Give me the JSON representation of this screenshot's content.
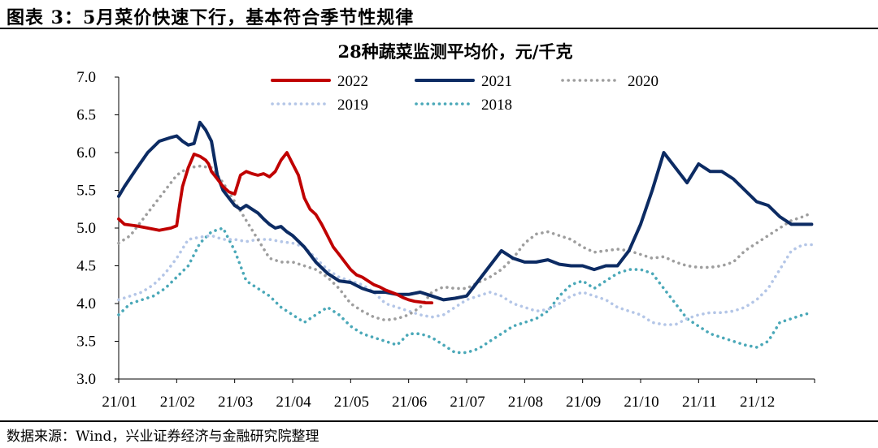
{
  "figure": {
    "title": "图表 3：5月菜价快速下行，基本符合季节性规律",
    "source": "数据来源：Wind，兴业证券经济与金融研究院整理"
  },
  "chart_data": {
    "type": "line",
    "title": "28种蔬菜监测平均价，元/千克",
    "xlabel": "",
    "ylabel": "",
    "ylim": [
      3.0,
      7.0
    ],
    "yticks": [
      "3.0",
      "3.5",
      "4.0",
      "4.5",
      "5.0",
      "5.5",
      "6.0",
      "6.5",
      "7.0"
    ],
    "xticks": [
      "21/01",
      "21/02",
      "21/03",
      "21/04",
      "21/05",
      "21/06",
      "21/07",
      "21/08",
      "21/09",
      "21/10",
      "21/11",
      "21/12"
    ],
    "grid": false,
    "legend_position": "top",
    "series": [
      {
        "name": "2022",
        "color": "#c00000",
        "style": "solid",
        "x": [
          0.0,
          0.1,
          0.3,
          0.5,
          0.7,
          0.9,
          1.0,
          1.05,
          1.1,
          1.2,
          1.3,
          1.4,
          1.5,
          1.55,
          1.6,
          1.7,
          1.8,
          1.9,
          2.0,
          2.1,
          2.2,
          2.3,
          2.4,
          2.5,
          2.6,
          2.7,
          2.8,
          2.9,
          3.0,
          3.1,
          3.2,
          3.3,
          3.4,
          3.5,
          3.6,
          3.7,
          3.8,
          3.9,
          4.0,
          4.1,
          4.2,
          4.3,
          4.4,
          4.5,
          4.6,
          4.7,
          4.8,
          4.9,
          5.0,
          5.1,
          5.2,
          5.3,
          5.4
        ],
        "values": [
          5.12,
          5.05,
          5.03,
          5.0,
          4.97,
          5.0,
          5.03,
          5.3,
          5.55,
          5.8,
          5.98,
          5.95,
          5.9,
          5.85,
          5.75,
          5.65,
          5.55,
          5.48,
          5.45,
          5.7,
          5.75,
          5.72,
          5.7,
          5.72,
          5.68,
          5.75,
          5.9,
          6.0,
          5.85,
          5.7,
          5.4,
          5.25,
          5.18,
          5.05,
          4.9,
          4.75,
          4.65,
          4.55,
          4.45,
          4.38,
          4.35,
          4.3,
          4.25,
          4.22,
          4.18,
          4.15,
          4.12,
          4.08,
          4.05,
          4.03,
          4.02,
          4.01,
          4.01
        ]
      },
      {
        "name": "2021",
        "color": "#0c2b63",
        "style": "solid",
        "x": [
          0.0,
          0.1,
          0.3,
          0.5,
          0.7,
          0.9,
          1.0,
          1.1,
          1.2,
          1.3,
          1.4,
          1.5,
          1.6,
          1.7,
          1.8,
          1.9,
          2.0,
          2.1,
          2.2,
          2.3,
          2.4,
          2.5,
          2.6,
          2.7,
          2.8,
          2.9,
          3.0,
          3.2,
          3.4,
          3.6,
          3.8,
          4.0,
          4.2,
          4.4,
          4.6,
          4.8,
          5.0,
          5.2,
          5.4,
          5.6,
          5.8,
          6.0,
          6.2,
          6.4,
          6.6,
          6.8,
          7.0,
          7.2,
          7.4,
          7.6,
          7.8,
          8.0,
          8.2,
          8.4,
          8.6,
          8.8,
          9.0,
          9.2,
          9.4,
          9.6,
          9.8,
          10.0,
          10.2,
          10.4,
          10.6,
          10.8,
          11.0,
          11.2,
          11.4,
          11.6,
          11.8,
          11.95
        ],
        "values": [
          5.42,
          5.55,
          5.78,
          6.0,
          6.15,
          6.2,
          6.22,
          6.15,
          6.1,
          6.12,
          6.4,
          6.3,
          6.15,
          5.7,
          5.5,
          5.4,
          5.3,
          5.25,
          5.3,
          5.25,
          5.2,
          5.12,
          5.05,
          5.0,
          5.02,
          4.95,
          4.9,
          4.75,
          4.55,
          4.4,
          4.3,
          4.28,
          4.2,
          4.15,
          4.15,
          4.12,
          4.12,
          4.15,
          4.1,
          4.05,
          4.07,
          4.1,
          4.3,
          4.5,
          4.7,
          4.6,
          4.55,
          4.55,
          4.58,
          4.52,
          4.5,
          4.5,
          4.45,
          4.5,
          4.5,
          4.7,
          5.05,
          5.5,
          6.0,
          5.8,
          5.6,
          5.85,
          5.75,
          5.75,
          5.65,
          5.5,
          5.35,
          5.3,
          5.15,
          5.05,
          5.05,
          5.05
        ]
      },
      {
        "name": "2020",
        "color": "#9e9e9e",
        "style": "dotted",
        "x": [
          0.0,
          0.2,
          0.4,
          0.6,
          0.8,
          1.0,
          1.2,
          1.4,
          1.6,
          1.8,
          2.0,
          2.2,
          2.4,
          2.6,
          2.8,
          3.0,
          3.2,
          3.4,
          3.6,
          3.8,
          4.0,
          4.2,
          4.4,
          4.6,
          4.8,
          5.0,
          5.2,
          5.4,
          5.6,
          5.8,
          6.0,
          6.2,
          6.4,
          6.6,
          6.8,
          7.0,
          7.2,
          7.4,
          7.6,
          7.8,
          8.0,
          8.2,
          8.4,
          8.6,
          8.8,
          9.0,
          9.2,
          9.4,
          9.6,
          9.8,
          10.0,
          10.2,
          10.4,
          10.6,
          10.8,
          11.0,
          11.2,
          11.4,
          11.6,
          11.8,
          11.95
        ],
        "values": [
          4.8,
          4.9,
          5.1,
          5.3,
          5.5,
          5.7,
          5.8,
          5.82,
          5.8,
          5.6,
          5.35,
          5.1,
          4.85,
          4.6,
          4.55,
          4.55,
          4.5,
          4.45,
          4.35,
          4.2,
          4.0,
          3.9,
          3.82,
          3.78,
          3.8,
          3.85,
          3.95,
          4.15,
          4.22,
          4.2,
          4.2,
          4.28,
          4.35,
          4.45,
          4.6,
          4.8,
          4.92,
          4.95,
          4.9,
          4.85,
          4.75,
          4.68,
          4.7,
          4.72,
          4.7,
          4.65,
          4.6,
          4.62,
          4.55,
          4.5,
          4.48,
          4.48,
          4.5,
          4.55,
          4.7,
          4.8,
          4.9,
          5.0,
          5.1,
          5.15,
          5.2
        ]
      },
      {
        "name": "2019",
        "color": "#b4c6e7",
        "style": "dotted",
        "x": [
          0.0,
          0.2,
          0.4,
          0.6,
          0.8,
          1.0,
          1.2,
          1.4,
          1.6,
          1.8,
          2.0,
          2.2,
          2.4,
          2.6,
          2.8,
          3.0,
          3.2,
          3.4,
          3.6,
          3.8,
          4.0,
          4.2,
          4.4,
          4.6,
          4.8,
          5.0,
          5.2,
          5.4,
          5.6,
          5.8,
          6.0,
          6.2,
          6.4,
          6.6,
          6.8,
          7.0,
          7.2,
          7.4,
          7.6,
          7.8,
          8.0,
          8.2,
          8.4,
          8.6,
          8.8,
          9.0,
          9.2,
          9.4,
          9.6,
          9.8,
          10.0,
          10.2,
          10.4,
          10.6,
          10.8,
          11.0,
          11.2,
          11.4,
          11.6,
          11.8,
          11.95
        ],
        "values": [
          4.05,
          4.1,
          4.15,
          4.25,
          4.4,
          4.6,
          4.85,
          4.88,
          4.9,
          4.85,
          4.85,
          4.82,
          4.85,
          4.85,
          4.82,
          4.8,
          4.75,
          4.6,
          4.45,
          4.35,
          4.3,
          4.25,
          4.15,
          4.0,
          3.95,
          3.9,
          3.85,
          3.82,
          3.85,
          3.95,
          4.05,
          4.1,
          4.15,
          4.1,
          4.0,
          3.95,
          3.9,
          3.92,
          4.0,
          4.1,
          4.15,
          4.1,
          4.05,
          3.95,
          3.9,
          3.85,
          3.75,
          3.72,
          3.72,
          3.8,
          3.85,
          3.88,
          3.88,
          3.9,
          3.95,
          4.05,
          4.2,
          4.45,
          4.7,
          4.78,
          4.78
        ]
      },
      {
        "name": "2018",
        "color": "#4aa8b8",
        "style": "dotted",
        "x": [
          0.0,
          0.2,
          0.4,
          0.6,
          0.8,
          1.0,
          1.2,
          1.4,
          1.6,
          1.8,
          2.0,
          2.2,
          2.4,
          2.6,
          2.8,
          3.0,
          3.2,
          3.4,
          3.6,
          3.8,
          4.0,
          4.2,
          4.4,
          4.6,
          4.8,
          5.0,
          5.2,
          5.4,
          5.6,
          5.8,
          6.0,
          6.2,
          6.4,
          6.6,
          6.8,
          7.0,
          7.2,
          7.4,
          7.6,
          7.8,
          8.0,
          8.2,
          8.4,
          8.6,
          8.8,
          9.0,
          9.2,
          9.4,
          9.6,
          9.8,
          10.0,
          10.2,
          10.4,
          10.6,
          10.8,
          11.0,
          11.2,
          11.4,
          11.6,
          11.8,
          11.95
        ],
        "values": [
          3.85,
          4.0,
          4.05,
          4.1,
          4.2,
          4.35,
          4.5,
          4.8,
          4.95,
          5.0,
          4.7,
          4.3,
          4.2,
          4.1,
          3.95,
          3.85,
          3.75,
          3.85,
          3.95,
          3.85,
          3.7,
          3.6,
          3.55,
          3.5,
          3.45,
          3.6,
          3.6,
          3.55,
          3.45,
          3.35,
          3.35,
          3.4,
          3.5,
          3.6,
          3.7,
          3.75,
          3.8,
          3.9,
          4.1,
          4.25,
          4.3,
          4.2,
          4.3,
          4.4,
          4.45,
          4.45,
          4.4,
          4.2,
          4.0,
          3.8,
          3.7,
          3.6,
          3.55,
          3.5,
          3.45,
          3.42,
          3.5,
          3.75,
          3.8,
          3.85,
          3.88
        ]
      }
    ]
  }
}
